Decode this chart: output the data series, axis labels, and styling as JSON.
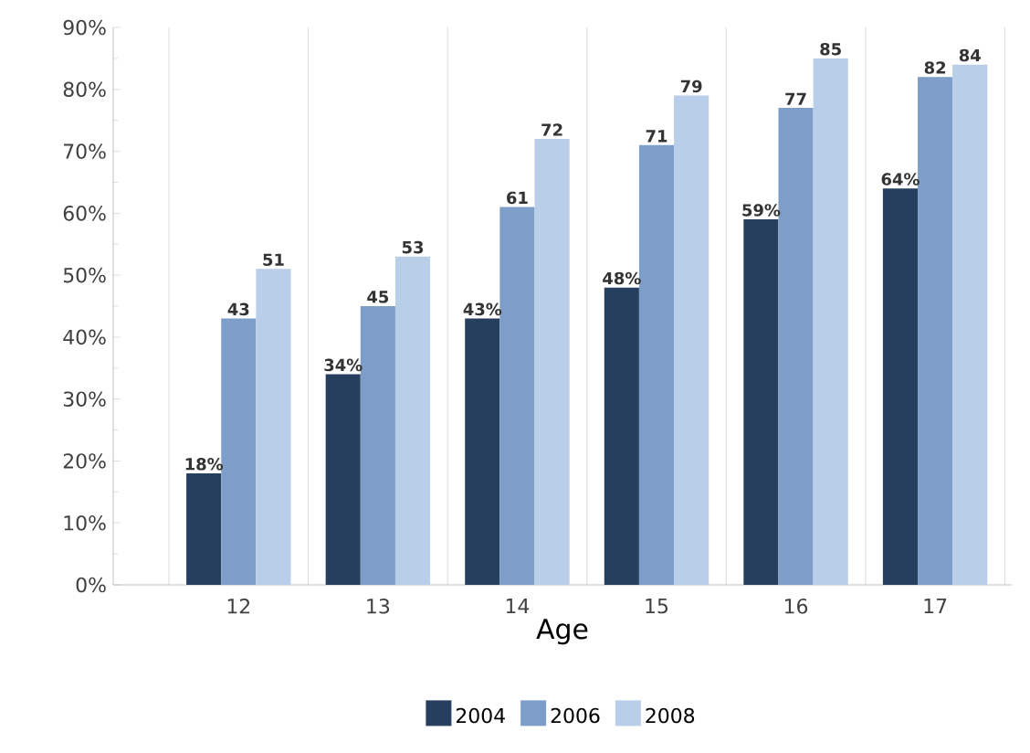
{
  "chart_data": {
    "type": "bar",
    "xlabel": "Age",
    "categories": [
      "12",
      "13",
      "14",
      "15",
      "16",
      "17"
    ],
    "series": [
      {
        "name": "2004",
        "color": "#263f5e",
        "values": [
          18,
          34,
          43,
          48,
          59,
          64
        ],
        "value_labels": [
          "18%",
          "34%",
          "43%",
          "48%",
          "59%",
          "64%"
        ]
      },
      {
        "name": "2006",
        "color": "#7c9ec9",
        "values": [
          43,
          45,
          61,
          71,
          77,
          82
        ],
        "value_labels": [
          "43",
          "45",
          "61",
          "71",
          "77",
          "82"
        ]
      },
      {
        "name": "2008",
        "color": "#b9cee8",
        "values": [
          51,
          53,
          72,
          79,
          85,
          84
        ],
        "value_labels": [
          "51",
          "53",
          "72",
          "79",
          "85",
          "84"
        ]
      }
    ],
    "ylim": [
      0,
      90
    ],
    "yticks": [
      {
        "value": 0,
        "label": "0%"
      },
      {
        "value": 10,
        "label": "10%"
      },
      {
        "value": 20,
        "label": "20%"
      },
      {
        "value": 30,
        "label": "30%"
      },
      {
        "value": 40,
        "label": "40%"
      },
      {
        "value": 50,
        "label": "50%"
      },
      {
        "value": 60,
        "label": "60%"
      },
      {
        "value": 70,
        "label": "70%"
      },
      {
        "value": 80,
        "label": "80%"
      },
      {
        "value": 90,
        "label": "90%"
      }
    ],
    "grid": "x",
    "legend": "bottom"
  }
}
